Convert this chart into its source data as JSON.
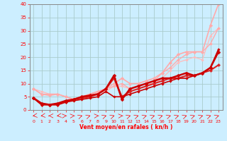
{
  "xlabel": "Vent moyen/en rafales ( kn/h )",
  "bg_color": "#cceeff",
  "grid_color": "#aacccc",
  "xlim": [
    -0.5,
    23.5
  ],
  "ylim": [
    0,
    40
  ],
  "yticks": [
    0,
    5,
    10,
    15,
    20,
    25,
    30,
    35,
    40
  ],
  "xticks": [
    0,
    1,
    2,
    3,
    4,
    5,
    6,
    7,
    8,
    9,
    10,
    11,
    12,
    13,
    14,
    15,
    16,
    17,
    18,
    19,
    20,
    21,
    22,
    23
  ],
  "lines": [
    {
      "x": [
        0,
        1,
        2,
        3,
        4,
        5,
        6,
        7,
        8,
        9,
        10,
        11,
        12,
        13,
        14,
        15,
        16,
        17,
        18,
        19,
        20,
        21,
        22,
        23
      ],
      "y": [
        4.5,
        2,
        2,
        2,
        3,
        3.5,
        4,
        4.5,
        5,
        7,
        5,
        5,
        6,
        7,
        8,
        9,
        10,
        11,
        12,
        12,
        13,
        14,
        16,
        23
      ],
      "color": "#cc0000",
      "lw": 1.2,
      "marker": "D",
      "ms": 1.8,
      "zorder": 6
    },
    {
      "x": [
        0,
        1,
        2,
        3,
        4,
        5,
        6,
        7,
        8,
        9,
        10,
        11,
        12,
        13,
        14,
        15,
        16,
        17,
        18,
        19,
        20,
        21,
        22,
        23
      ],
      "y": [
        4.5,
        2,
        2,
        2,
        3,
        4,
        4.5,
        5,
        6,
        8,
        12,
        5,
        7,
        8,
        9,
        10,
        11,
        12,
        12,
        13,
        13,
        14,
        15,
        17
      ],
      "color": "#dd2222",
      "lw": 1.5,
      "marker": "D",
      "ms": 2.2,
      "zorder": 5
    },
    {
      "x": [
        0,
        1,
        2,
        3,
        4,
        5,
        6,
        7,
        8,
        9,
        10,
        11,
        12,
        13,
        14,
        15,
        16,
        17,
        18,
        19,
        20,
        21,
        22,
        23
      ],
      "y": [
        4.5,
        2.5,
        2,
        2.5,
        3.5,
        4,
        5,
        5.5,
        6,
        8,
        13,
        4,
        8,
        9,
        10,
        11,
        12,
        12,
        13,
        14,
        13,
        14,
        16,
        22
      ],
      "color": "#cc0000",
      "lw": 1.8,
      "marker": "D",
      "ms": 2.5,
      "zorder": 7
    },
    {
      "x": [
        0,
        1,
        2,
        3,
        4,
        5,
        6,
        7,
        8,
        9,
        10,
        11,
        12,
        13,
        14,
        15,
        16,
        17,
        18,
        19,
        20,
        21,
        22,
        23
      ],
      "y": [
        8,
        6,
        6,
        6,
        5,
        4,
        5,
        6,
        7,
        8,
        9,
        10,
        8,
        9,
        10,
        11,
        14,
        16,
        19,
        21,
        22,
        22,
        25,
        31
      ],
      "color": "#ffaaaa",
      "lw": 1.0,
      "marker": "D",
      "ms": 2.0,
      "zorder": 3
    },
    {
      "x": [
        0,
        1,
        2,
        3,
        4,
        5,
        6,
        7,
        8,
        9,
        10,
        11,
        12,
        13,
        14,
        15,
        16,
        17,
        18,
        19,
        20,
        21,
        22,
        23
      ],
      "y": [
        8,
        6,
        5.5,
        6,
        5,
        4,
        5,
        6,
        7,
        8,
        10,
        12,
        10,
        10,
        11,
        12,
        14,
        18,
        21,
        22,
        22,
        22,
        32,
        40
      ],
      "color": "#ffaaaa",
      "lw": 1.2,
      "marker": "D",
      "ms": 2.3,
      "zorder": 2
    },
    {
      "x": [
        0,
        1,
        2,
        3,
        4,
        5,
        6,
        7,
        8,
        9,
        10,
        11,
        12,
        13,
        14,
        15,
        16,
        17,
        18,
        19,
        20,
        21,
        22,
        23
      ],
      "y": [
        8,
        7,
        6,
        6,
        5,
        4,
        5,
        5.5,
        6.5,
        7,
        9,
        9,
        8,
        9,
        10,
        10,
        12,
        15,
        18,
        19,
        20,
        19,
        28,
        31
      ],
      "color": "#ffbbbb",
      "lw": 0.9,
      "marker": "D",
      "ms": 1.8,
      "zorder": 2
    }
  ],
  "arrow_angles": [
    200,
    200,
    180,
    200,
    10,
    10,
    45,
    45,
    10,
    45,
    45,
    10,
    45,
    45,
    45,
    45,
    45,
    45,
    45,
    45,
    45,
    45,
    45,
    45
  ]
}
